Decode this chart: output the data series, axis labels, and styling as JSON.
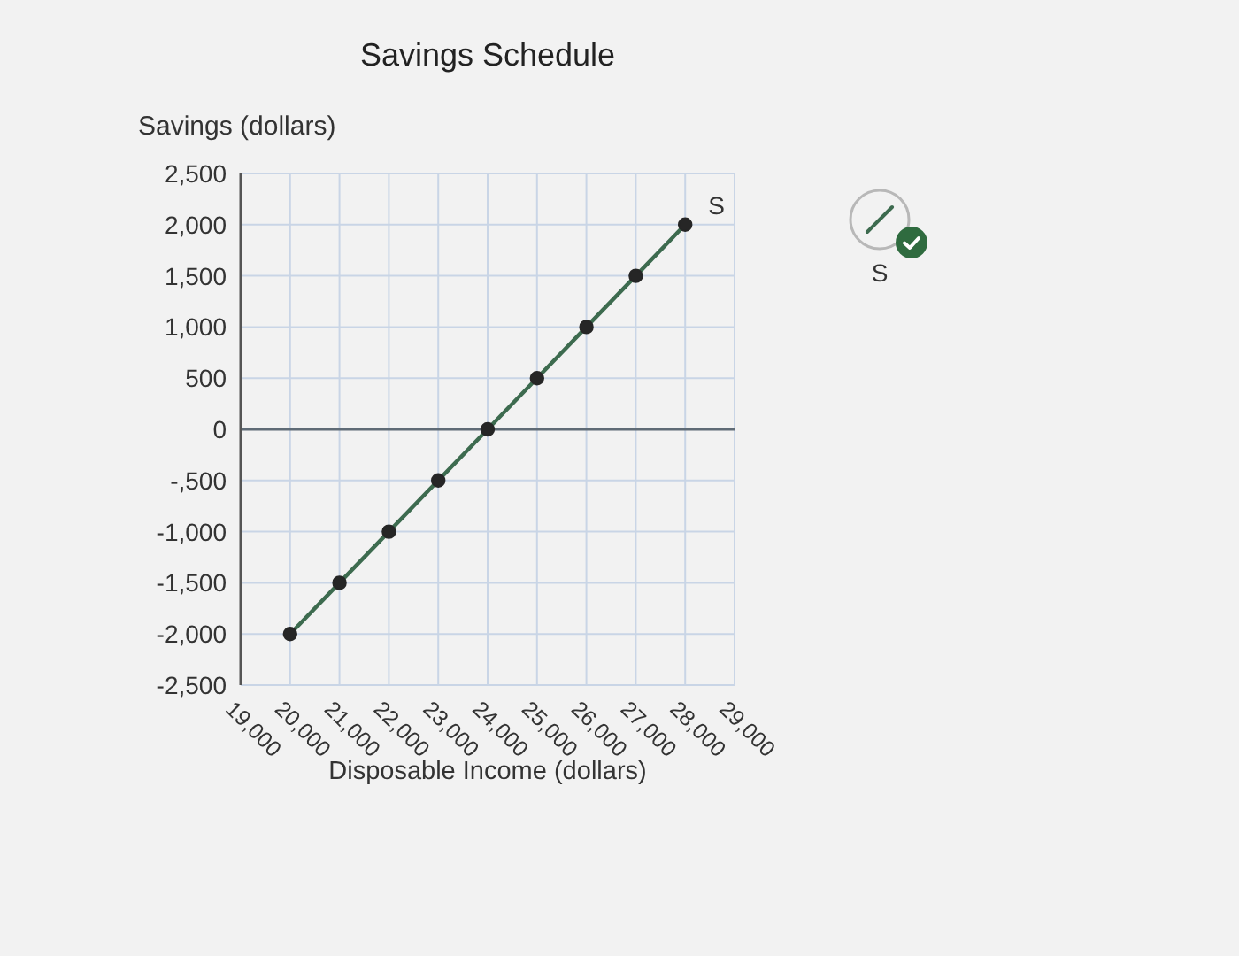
{
  "chart_data": {
    "type": "line",
    "title": "Savings Schedule",
    "xlabel": "Disposable Income (dollars)",
    "ylabel": "Savings (dollars)",
    "x": [
      20000,
      21000,
      22000,
      23000,
      24000,
      25000,
      26000,
      27000,
      28000
    ],
    "series": [
      {
        "name": "S",
        "color": "#3d6b4f",
        "values": [
          -2000,
          -1500,
          -1000,
          -500,
          0,
          500,
          1000,
          1500,
          2000
        ]
      }
    ],
    "xlim": [
      19000,
      29000
    ],
    "xticks": [
      {
        "value": 19000,
        "label": "19,000"
      },
      {
        "value": 20000,
        "label": "20,000"
      },
      {
        "value": 21000,
        "label": "21,000"
      },
      {
        "value": 22000,
        "label": "22,000"
      },
      {
        "value": 23000,
        "label": "23,000"
      },
      {
        "value": 24000,
        "label": "24,000"
      },
      {
        "value": 25000,
        "label": "25,000"
      },
      {
        "value": 26000,
        "label": "26,000"
      },
      {
        "value": 27000,
        "label": "27,000"
      },
      {
        "value": 28000,
        "label": "28,000"
      },
      {
        "value": 29000,
        "label": "29,000"
      }
    ],
    "ylim": [
      -2500,
      2500
    ],
    "yticks": [
      {
        "value": -2500,
        "label": "-2,500"
      },
      {
        "value": -2000,
        "label": "-2,000"
      },
      {
        "value": -1500,
        "label": "-1,500"
      },
      {
        "value": -1000,
        "label": "-1,000"
      },
      {
        "value": -500,
        "label": "-,500"
      },
      0,
      500,
      {
        "value": 1000,
        "label": "1,000"
      },
      {
        "value": 1500,
        "label": "1,500"
      },
      {
        "value": 2000,
        "label": "2,000"
      },
      {
        "value": 2500,
        "label": "2,500"
      }
    ],
    "grid": true,
    "marker": "circle",
    "legend": "top right",
    "ref_lines": [
      {
        "axis": "y",
        "value": 0,
        "color": "#5f6b76"
      }
    ]
  }
}
